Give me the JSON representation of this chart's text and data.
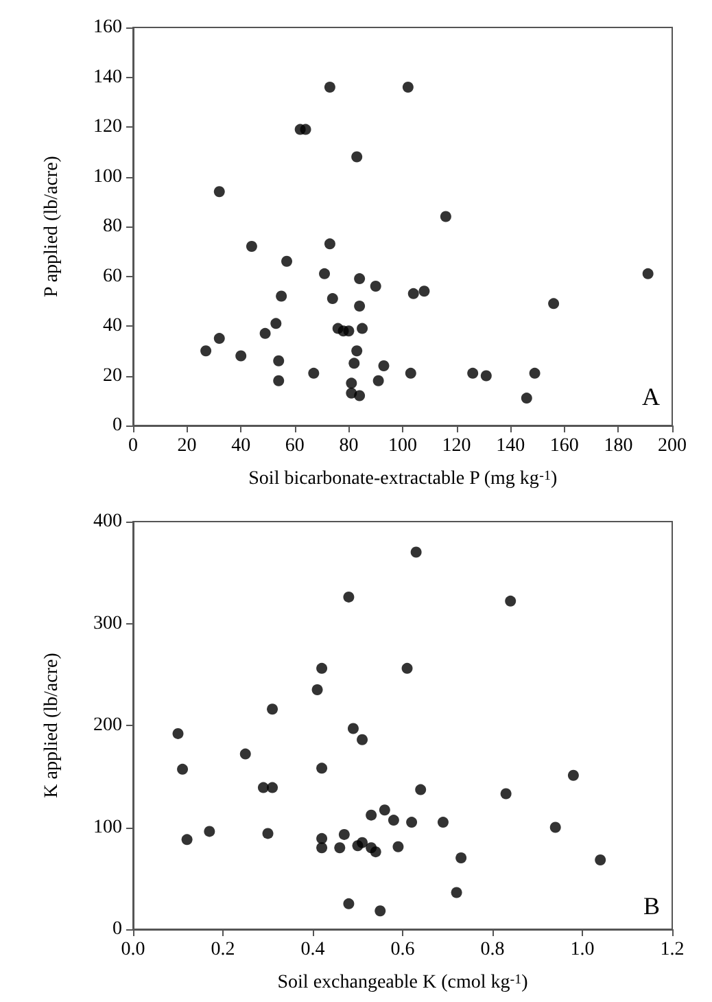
{
  "chart_data": [
    {
      "type": "scatter",
      "xlabel": "Soil bicarbonate-extractable P (mg kg$^{-1}$)",
      "ylabel": "P applied (lb/acre)",
      "annotations": [
        "A"
      ],
      "marker": "circle",
      "grid": false,
      "xlim": [
        0,
        200
      ],
      "xticks": [
        0,
        20,
        40,
        60,
        80,
        100,
        120,
        140,
        160,
        180,
        200
      ],
      "ylim": [
        0,
        160
      ],
      "yticks": [
        0,
        20,
        40,
        60,
        80,
        100,
        120,
        140,
        160
      ],
      "series": [
        {
          "color": "#000000",
          "x": [
            27,
            32,
            32,
            40,
            44,
            49,
            53,
            54,
            54,
            55,
            57,
            62,
            64,
            67,
            71,
            73,
            73,
            74,
            76,
            78,
            80,
            81,
            82,
            81,
            83,
            83,
            84,
            84,
            85,
            84,
            90,
            91,
            93,
            102,
            103,
            104,
            108,
            116,
            126,
            131,
            146,
            149,
            156,
            191
          ],
          "values": [
            30,
            94,
            35,
            28,
            72,
            37,
            41,
            26,
            18,
            52,
            66,
            119,
            119,
            21,
            61,
            136,
            73,
            51,
            39,
            38,
            38,
            17,
            25,
            13,
            108,
            30,
            48,
            59,
            39,
            12,
            56,
            18,
            24,
            136,
            21,
            53,
            54,
            84,
            21,
            20,
            11,
            21,
            49,
            61
          ]
        }
      ]
    },
    {
      "type": "scatter",
      "xlabel": "Soil exchangeable K (cmol kg$^{-1}$)",
      "ylabel": "K applied (lb/acre)",
      "annotations": [
        "B"
      ],
      "marker": "circle",
      "grid": false,
      "xlim": [
        0,
        1.2
      ],
      "xticks": [
        {
          "value": 0,
          "label": "0.0"
        },
        {
          "value": 0.2,
          "label": "0.2"
        },
        {
          "value": 0.4,
          "label": "0.4"
        },
        {
          "value": 0.6,
          "label": "0.6"
        },
        {
          "value": 0.8,
          "label": "0.8"
        },
        {
          "value": 1,
          "label": "1.0"
        },
        {
          "value": 1.2,
          "label": "1.2"
        }
      ],
      "ylim": [
        0,
        400
      ],
      "yticks": [
        0,
        100,
        200,
        300,
        400
      ],
      "series": [
        {
          "color": "#000000",
          "x": [
            0.1,
            0.11,
            0.12,
            0.17,
            0.25,
            0.29,
            0.3,
            0.31,
            0.31,
            0.41,
            0.42,
            0.42,
            0.42,
            0.42,
            0.46,
            0.47,
            0.48,
            0.48,
            0.49,
            0.5,
            0.51,
            0.51,
            0.53,
            0.53,
            0.54,
            0.55,
            0.56,
            0.58,
            0.59,
            0.61,
            0.62,
            0.63,
            0.64,
            0.69,
            0.72,
            0.73,
            0.83,
            0.84,
            0.94,
            0.98,
            1.04
          ],
          "values": [
            192,
            157,
            88,
            96,
            172,
            139,
            94,
            216,
            139,
            235,
            256,
            158,
            89,
            80,
            80,
            93,
            326,
            25,
            197,
            82,
            85,
            186,
            112,
            80,
            76,
            18,
            117,
            107,
            81,
            256,
            105,
            370,
            137,
            105,
            36,
            70,
            133,
            322,
            100,
            151,
            68
          ]
        }
      ]
    }
  ]
}
